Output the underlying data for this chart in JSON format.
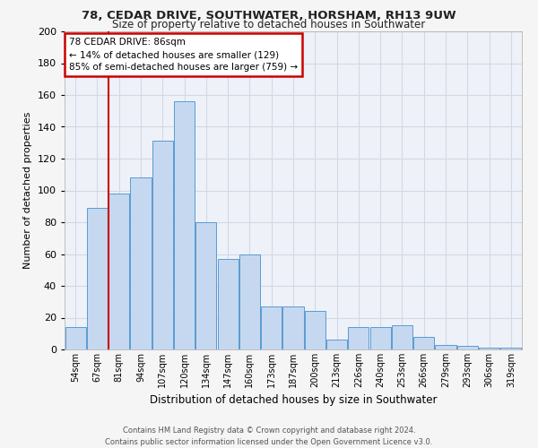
{
  "title1": "78, CEDAR DRIVE, SOUTHWATER, HORSHAM, RH13 9UW",
  "title2": "Size of property relative to detached houses in Southwater",
  "xlabel": "Distribution of detached houses by size in Southwater",
  "ylabel": "Number of detached properties",
  "categories": [
    "54sqm",
    "67sqm",
    "81sqm",
    "94sqm",
    "107sqm",
    "120sqm",
    "134sqm",
    "147sqm",
    "160sqm",
    "173sqm",
    "187sqm",
    "200sqm",
    "213sqm",
    "226sqm",
    "240sqm",
    "253sqm",
    "266sqm",
    "279sqm",
    "293sqm",
    "306sqm",
    "319sqm"
  ],
  "values": [
    14,
    89,
    98,
    108,
    131,
    156,
    80,
    57,
    60,
    27,
    27,
    24,
    6,
    14,
    14,
    15,
    8,
    3,
    2,
    1,
    1
  ],
  "bar_color": "#c5d8f0",
  "bar_edge_color": "#5a9bd4",
  "grid_color": "#d0d8e8",
  "background_color": "#eef2f8",
  "fig_background_color": "#f5f5f5",
  "annotation_text": "78 CEDAR DRIVE: 86sqm\n← 14% of detached houses are smaller (129)\n85% of semi-detached houses are larger (759) →",
  "annotation_box_color": "#ffffff",
  "annotation_box_edge": "#cc0000",
  "vline_color": "#cc0000",
  "ylim": [
    0,
    200
  ],
  "yticks": [
    0,
    20,
    40,
    60,
    80,
    100,
    120,
    140,
    160,
    180,
    200
  ],
  "footer1": "Contains HM Land Registry data © Crown copyright and database right 2024.",
  "footer2": "Contains public sector information licensed under the Open Government Licence v3.0.",
  "title1_fontsize": 9.5,
  "title2_fontsize": 8.5,
  "xlabel_fontsize": 8.5,
  "ylabel_fontsize": 8,
  "tick_fontsize": 7,
  "annotation_fontsize": 7.5,
  "footer_fontsize": 6
}
